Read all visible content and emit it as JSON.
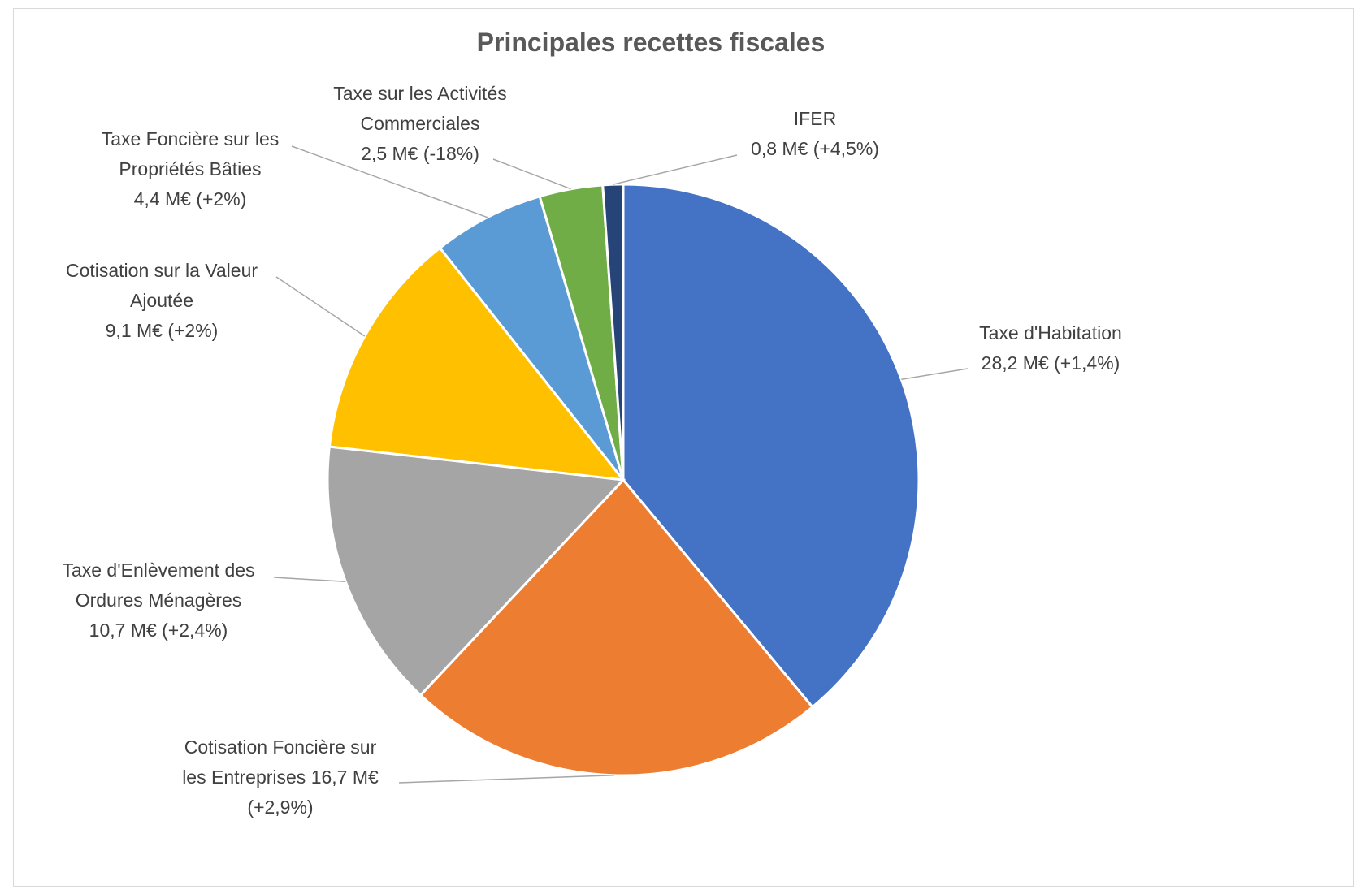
{
  "chart_data": {
    "type": "pie",
    "title": "Principales recettes fiscales",
    "unit": "M€",
    "start_angle_deg": 0,
    "direction": "clockwise",
    "slices": [
      {
        "label_lines": [
          "Taxe d'Habitation",
          "28,2 M€ (+1,4%)"
        ],
        "value": 28.2,
        "change": "+1,4%",
        "color": "#4472C4"
      },
      {
        "label_lines": [
          "Cotisation Foncière sur",
          "les Entreprises 16,7 M€",
          "(+2,9%)"
        ],
        "value": 16.7,
        "change": "+2,9%",
        "color": "#ED7D31"
      },
      {
        "label_lines": [
          "Taxe d'Enlèvement des",
          "Ordures Ménagères",
          "10,7 M€ (+2,4%)"
        ],
        "value": 10.7,
        "change": "+2,4%",
        "color": "#A5A5A5"
      },
      {
        "label_lines": [
          "Cotisation sur la Valeur",
          "Ajoutée",
          "9,1 M€ (+2%)"
        ],
        "value": 9.1,
        "change": "+2%",
        "color": "#FFC000"
      },
      {
        "label_lines": [
          "Taxe Foncière sur les",
          "Propriétés Bâties",
          "4,4 M€ (+2%)"
        ],
        "value": 4.4,
        "change": "+2%",
        "color": "#5B9BD5"
      },
      {
        "label_lines": [
          "Taxe sur les Activités",
          "Commerciales",
          "2,5 M€ (-18%)"
        ],
        "value": 2.5,
        "change": "-18%",
        "color": "#70AD47"
      },
      {
        "label_lines": [
          "IFER",
          "0,8 M€ (+4,5%)"
        ],
        "value": 0.8,
        "change": "+4,5%",
        "color": "#264478"
      }
    ]
  }
}
